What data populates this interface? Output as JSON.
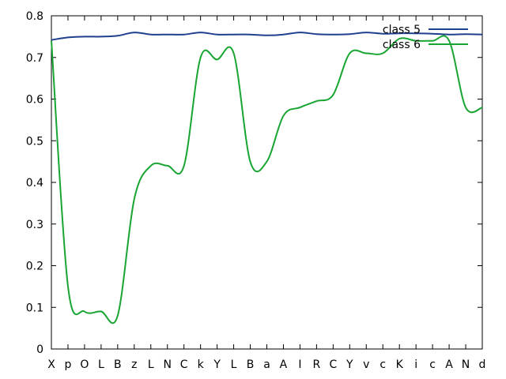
{
  "chart_data": {
    "type": "line",
    "categories": [
      "X",
      "p",
      "O",
      "L",
      "B",
      "z",
      "L",
      "N",
      "C",
      "k",
      "Y",
      "L",
      "B",
      "a",
      "A",
      "I",
      "R",
      "C",
      "Y",
      "v",
      "c",
      "K",
      "i",
      "c",
      "A",
      "N",
      "d"
    ],
    "ylim": [
      0,
      0.8
    ],
    "yticks": [
      0,
      0.1,
      0.2,
      0.3,
      0.4,
      0.5,
      0.6,
      0.7,
      0.8
    ],
    "ytick_labels": [
      "0",
      "0.1",
      "0.2",
      "0.3",
      "0.4",
      "0.5",
      "0.6",
      "0.7",
      "0.8"
    ],
    "grid": false,
    "legend_position": "top-right",
    "series": [
      {
        "name": "class 5",
        "color": "#1f3f8f",
        "values": [
          0.742,
          0.748,
          0.75,
          0.75,
          0.752,
          0.76,
          0.755,
          0.755,
          0.755,
          0.76,
          0.755,
          0.755,
          0.755,
          0.753,
          0.755,
          0.76,
          0.756,
          0.755,
          0.756,
          0.76,
          0.757,
          0.758,
          0.758,
          0.757,
          0.755,
          0.756,
          0.755
        ]
      },
      {
        "name": "class 6",
        "color": "#18a532",
        "values": [
          0.74,
          0.15,
          0.09,
          0.09,
          0.08,
          0.36,
          0.44,
          0.44,
          0.44,
          0.7,
          0.695,
          0.71,
          0.45,
          0.45,
          0.56,
          0.58,
          0.595,
          0.61,
          0.71,
          0.71,
          0.71,
          0.745,
          0.74,
          0.74,
          0.74,
          0.58,
          0.58
        ]
      }
    ]
  }
}
